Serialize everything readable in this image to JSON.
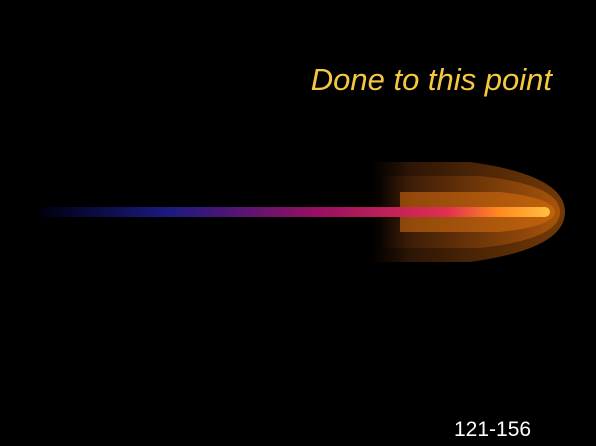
{
  "slide": {
    "title": "Done to this point",
    "footer": "121-156"
  }
}
